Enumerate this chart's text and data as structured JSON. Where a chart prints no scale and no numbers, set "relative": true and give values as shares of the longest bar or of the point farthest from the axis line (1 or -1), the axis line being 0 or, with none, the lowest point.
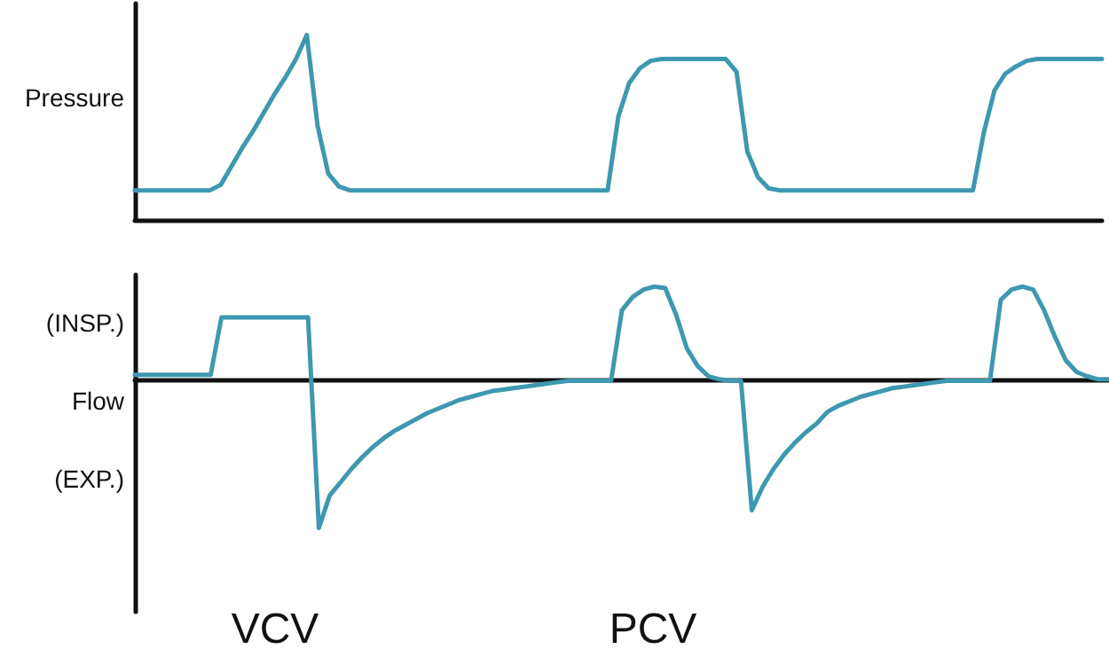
{
  "chart_data": [
    {
      "type": "line",
      "relative": true,
      "ylabel": "Pressure",
      "categories": [
        null,
        null,
        null,
        null,
        null,
        null,
        null,
        null,
        null,
        null,
        null,
        null,
        null,
        null,
        null,
        null,
        null,
        null,
        null,
        null,
        null,
        null,
        null,
        null,
        null,
        null,
        null,
        null,
        null,
        null,
        null,
        null,
        null,
        null,
        null,
        null,
        null,
        null,
        null,
        null,
        null,
        null,
        null,
        null,
        null,
        null,
        null,
        null,
        null,
        null,
        null,
        null,
        null,
        null,
        null,
        null,
        null,
        null,
        null,
        null,
        null,
        null,
        null,
        null,
        null,
        null,
        null,
        null,
        null,
        null,
        null,
        null,
        null,
        null,
        null,
        null,
        null,
        null,
        null,
        null,
        null,
        null,
        null,
        null,
        null,
        null,
        null,
        null,
        null,
        null,
        null
      ],
      "series": [
        {
          "color": "#3d98b0",
          "values": [
            0.16,
            0.16,
            0.16,
            0.16,
            0.16,
            0.16,
            0.16,
            0.16,
            0.19,
            0.29,
            0.39,
            0.48,
            0.58,
            0.68,
            0.77,
            0.87,
            1,
            0.51,
            0.25,
            0.18,
            0.16,
            0.16,
            0.16,
            0.16,
            0.16,
            0.16,
            0.16,
            0.16,
            0.16,
            0.16,
            0.16,
            0.16,
            0.16,
            0.16,
            0.16,
            0.16,
            0.16,
            0.16,
            0.16,
            0.16,
            0.16,
            0.16,
            0.16,
            0.16,
            0.16,
            0.56,
            0.74,
            0.82,
            0.86,
            0.87,
            0.87,
            0.87,
            0.87,
            0.87,
            0.87,
            0.87,
            0.8,
            0.37,
            0.23,
            0.17,
            0.16,
            0.16,
            0.16,
            0.16,
            0.16,
            0.16,
            0.16,
            0.16,
            0.16,
            0.16,
            0.16,
            0.16,
            0.16,
            0.16,
            0.16,
            0.16,
            0.16,
            0.16,
            0.16,
            0.47,
            0.7,
            0.79,
            0.83,
            0.86,
            0.87,
            0.87,
            0.87,
            0.87,
            0.87,
            0.87,
            0.87
          ]
        }
      ]
    },
    {
      "type": "line",
      "relative": true,
      "ylabel": "Flow",
      "annotations": [
        "(INSP.)",
        "(EXP.)",
        "VCV",
        "PCV"
      ],
      "categories": [
        null,
        null,
        null,
        null,
        null,
        null,
        null,
        null,
        null,
        null,
        null,
        null,
        null,
        null,
        null,
        null,
        null,
        null,
        null,
        null,
        null,
        null,
        null,
        null,
        null,
        null,
        null,
        null,
        null,
        null,
        null,
        null,
        null,
        null,
        null,
        null,
        null,
        null,
        null,
        null,
        null,
        null,
        null,
        null,
        null,
        null,
        null,
        null,
        null,
        null,
        null,
        null,
        null,
        null,
        null,
        null,
        null,
        null,
        null,
        null,
        null,
        null,
        null,
        null,
        null,
        null,
        null,
        null,
        null,
        null,
        null,
        null,
        null,
        null,
        null,
        null,
        null,
        null,
        null,
        null,
        null,
        null,
        null,
        null,
        null,
        null,
        null,
        null,
        null,
        null,
        null
      ],
      "series": [
        {
          "color": "#3d98b0",
          "values": [
            0.04,
            0.04,
            0.04,
            0.04,
            0.04,
            0.04,
            0.04,
            0.04,
            0.43,
            0.43,
            0.43,
            0.43,
            0.43,
            0.43,
            0.43,
            0.43,
            0.43,
            -1,
            -0.78,
            -0.69,
            -0.6,
            -0.52,
            -0.45,
            -0.39,
            -0.34,
            -0.3,
            -0.26,
            -0.22,
            -0.19,
            -0.16,
            -0.13,
            -0.11,
            -0.09,
            -0.07,
            -0.06,
            -0.05,
            -0.04,
            -0.03,
            -0.02,
            -0.01,
            0,
            0,
            0,
            0,
            0,
            0.48,
            0.57,
            0.62,
            0.64,
            0.63,
            0.45,
            0.22,
            0.1,
            0.03,
            0.01,
            0,
            0,
            -0.88,
            -0.72,
            -0.6,
            -0.5,
            -0.42,
            -0.35,
            -0.29,
            -0.21,
            -0.17,
            -0.14,
            -0.11,
            -0.09,
            -0.07,
            -0.05,
            -0.04,
            -0.03,
            -0.02,
            -0.01,
            0,
            0,
            0,
            0,
            0,
            0.55,
            0.62,
            0.64,
            0.62,
            0.48,
            0.3,
            0.14,
            0.06,
            0.03,
            0.01,
            0.01
          ]
        }
      ]
    }
  ]
}
